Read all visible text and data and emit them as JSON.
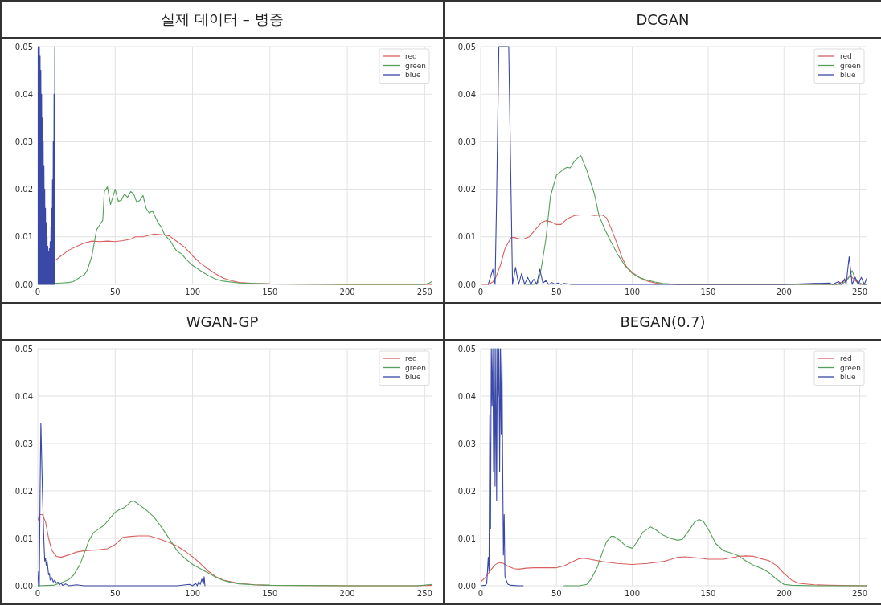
{
  "chart_data": [
    {
      "type": "line",
      "title": "실제 데이터 – 병증",
      "xlim": [
        0,
        255
      ],
      "ylim": [
        0,
        0.05
      ],
      "xticks": [
        0,
        50,
        100,
        150,
        200,
        250
      ],
      "yticks": [
        {
          "value": 0,
          "label": "0.00"
        },
        {
          "value": 0.01,
          "label": "0.01"
        },
        {
          "value": 0.02,
          "label": "0.02"
        },
        {
          "value": 0.03,
          "label": "0.03"
        },
        {
          "value": 0.04,
          "label": "0.04"
        },
        {
          "value": 0.05,
          "label": "0.05"
        }
      ],
      "grid": true,
      "legend": "top right",
      "series": [
        {
          "name": "red",
          "color": "#d9605f",
          "x": [
            11,
            15,
            20,
            25,
            30,
            35,
            40,
            45,
            50,
            55,
            60,
            63,
            68,
            75,
            82,
            85,
            90,
            95,
            100,
            105,
            110,
            115,
            120,
            125,
            130,
            140,
            150,
            200,
            255
          ],
          "values": [
            0.005,
            0.006,
            0.0072,
            0.008,
            0.0087,
            0.0091,
            0.009,
            0.0091,
            0.009,
            0.0092,
            0.0095,
            0.01,
            0.01,
            0.0106,
            0.0104,
            0.0102,
            0.009,
            0.0078,
            0.006,
            0.0045,
            0.0033,
            0.0022,
            0.0013,
            0.0008,
            0.0004,
            0.0002,
            0.0001,
            0,
            0
          ]
        },
        {
          "name": "green",
          "color": "#55a05a",
          "x": [
            11,
            15,
            20,
            23,
            25,
            28,
            30,
            32,
            35,
            38,
            40,
            42,
            43,
            45,
            47,
            50,
            52,
            54,
            56,
            58,
            60,
            62,
            64,
            66,
            68,
            70,
            72,
            74,
            78,
            80,
            82,
            86,
            88,
            90,
            93,
            96,
            100,
            105,
            110,
            115,
            120,
            130,
            150,
            200,
            250,
            253,
            255
          ],
          "values": [
            0.0002,
            0.0003,
            0.0004,
            0.0006,
            0.001,
            0.0017,
            0.002,
            0.003,
            0.006,
            0.0115,
            0.0125,
            0.0135,
            0.0195,
            0.0205,
            0.0168,
            0.02,
            0.0175,
            0.0177,
            0.019,
            0.0183,
            0.0195,
            0.019,
            0.0172,
            0.0177,
            0.0187,
            0.016,
            0.015,
            0.0155,
            0.0128,
            0.012,
            0.0104,
            0.009,
            0.0078,
            0.007,
            0.0064,
            0.0052,
            0.004,
            0.0029,
            0.0019,
            0.0011,
            0.0007,
            0.0003,
            0.0001,
            0,
            0,
            0.0003,
            0.0007
          ]
        },
        {
          "name": "blue",
          "color": "#3a48a8",
          "x": [
            0,
            0.25,
            0.5,
            0.75,
            1,
            1.25,
            1.5,
            1.75,
            2,
            2.25,
            2.5,
            2.75,
            3,
            3.25,
            3.5,
            3.75,
            4,
            4.25,
            4.5,
            4.75,
            5,
            5.25,
            5.5,
            5.75,
            6,
            6.25,
            6.5,
            6.75,
            7,
            7.25,
            7.5,
            7.75,
            8,
            8.25,
            8.5,
            8.75,
            9,
            9.25,
            9.5,
            9.75,
            10,
            10.25,
            10.5,
            10.75,
            11,
            11.1
          ],
          "values": [
            0.05,
            0,
            0.05,
            0,
            0.05,
            0,
            0.048,
            0,
            0.045,
            0,
            0.04,
            0,
            0.035,
            0,
            0.03,
            0,
            0.025,
            0,
            0.02,
            0,
            0.016,
            0,
            0.013,
            0,
            0.01,
            0,
            0.008,
            0,
            0.007,
            0,
            0.0075,
            0,
            0.009,
            0,
            0.012,
            0,
            0.016,
            0,
            0.022,
            0,
            0.03,
            0,
            0.04,
            0,
            0.05,
            0
          ]
        }
      ]
    },
    {
      "type": "line",
      "title": "DCGAN",
      "xlim": [
        0,
        255
      ],
      "ylim": [
        0,
        0.05
      ],
      "xticks": [
        0,
        50,
        100,
        150,
        200,
        250
      ],
      "yticks": [
        {
          "value": 0,
          "label": "0.00"
        },
        {
          "value": 0.01,
          "label": "0.01"
        },
        {
          "value": 0.02,
          "label": "0.02"
        },
        {
          "value": 0.03,
          "label": "0.03"
        },
        {
          "value": 0.04,
          "label": "0.04"
        },
        {
          "value": 0.05,
          "label": "0.05"
        }
      ],
      "grid": true,
      "legend": "top right",
      "series": [
        {
          "name": "red",
          "color": "#d9605f",
          "x": [
            0,
            5,
            8,
            10,
            13,
            16,
            20,
            22,
            25,
            28,
            32,
            36,
            40,
            43,
            46,
            50,
            53,
            57,
            62,
            66,
            72,
            75,
            80,
            83,
            86,
            90,
            93,
            96,
            100,
            105,
            110,
            115,
            120,
            130,
            235,
            240,
            244,
            247,
            250,
            255
          ],
          "values": [
            0,
            0,
            0.0005,
            0.0015,
            0.004,
            0.0075,
            0.0098,
            0.0099,
            0.0096,
            0.0095,
            0.01,
            0.0115,
            0.013,
            0.0134,
            0.0132,
            0.0126,
            0.0126,
            0.0138,
            0.0145,
            0.0146,
            0.0146,
            0.0145,
            0.0146,
            0.014,
            0.0118,
            0.0085,
            0.0058,
            0.0038,
            0.0025,
            0.0014,
            0.0007,
            0.0003,
            0.0001,
            0,
            0,
            0.0008,
            0.0018,
            0.0008,
            0,
            0
          ]
        },
        {
          "name": "green",
          "color": "#55a05a",
          "x": [
            30,
            35,
            38,
            40,
            43,
            46,
            50,
            52,
            55,
            57,
            59,
            62,
            66,
            70,
            75,
            78,
            82,
            85,
            90,
            95,
            100,
            105,
            110,
            115,
            120,
            130,
            238,
            242,
            245,
            247,
            250,
            252,
            255
          ],
          "values": [
            0,
            0,
            0.0005,
            0.0035,
            0.0095,
            0.0185,
            0.023,
            0.0235,
            0.0243,
            0.0246,
            0.0245,
            0.026,
            0.0271,
            0.024,
            0.019,
            0.0145,
            0.0115,
            0.0095,
            0.0065,
            0.004,
            0.0023,
            0.0014,
            0.0009,
            0.0005,
            0.0002,
            0,
            0,
            0.001,
            0.0029,
            0.0012,
            0.0003,
            0,
            0
          ]
        },
        {
          "name": "blue",
          "color": "#3a48a8",
          "x": [
            5,
            8,
            9.5,
            10.5,
            12,
            18.5,
            21,
            23,
            25,
            27,
            29,
            31,
            33,
            35,
            37,
            39,
            41,
            43,
            45,
            47,
            49,
            51,
            53,
            55,
            60,
            100,
            200,
            230,
            232,
            236,
            238,
            240,
            241,
            243,
            245,
            247,
            249,
            251,
            253,
            255
          ],
          "values": [
            0,
            0.0032,
            0,
            0.018,
            0.05,
            0.05,
            0,
            0.0036,
            0,
            0.0023,
            0,
            0.0015,
            0,
            0.0011,
            0,
            0.0032,
            0.0003,
            0.0008,
            0,
            0.0004,
            0,
            0.0003,
            0,
            0.0002,
            0,
            0,
            0,
            0.0003,
            0,
            0.0006,
            0,
            0.0012,
            0,
            0.0058,
            0,
            0.0015,
            0,
            0.0015,
            0,
            0.0016
          ]
        }
      ]
    },
    {
      "type": "line",
      "title": "WGAN-GP",
      "xlim": [
        0,
        255
      ],
      "ylim": [
        0,
        0.05
      ],
      "xticks": [
        0,
        50,
        100,
        150,
        200,
        250
      ],
      "yticks": [
        {
          "value": 0,
          "label": "0.00"
        },
        {
          "value": 0.01,
          "label": "0.01"
        },
        {
          "value": 0.02,
          "label": "0.02"
        },
        {
          "value": 0.03,
          "label": "0.03"
        },
        {
          "value": 0.04,
          "label": "0.04"
        },
        {
          "value": 0.05,
          "label": "0.05"
        }
      ],
      "grid": true,
      "legend": "top right",
      "series": [
        {
          "name": "red",
          "color": "#d9605f",
          "x": [
            0,
            1,
            3,
            5,
            7,
            9,
            12,
            15,
            20,
            25,
            30,
            40,
            45,
            50,
            55,
            60,
            65,
            72,
            78,
            85,
            90,
            95,
            100,
            105,
            110,
            115,
            120,
            130,
            140,
            150,
            200,
            245,
            255
          ],
          "values": [
            0.0138,
            0.015,
            0.015,
            0.0135,
            0.01,
            0.0075,
            0.0062,
            0.006,
            0.0065,
            0.0071,
            0.0074,
            0.0076,
            0.0078,
            0.0087,
            0.0102,
            0.0104,
            0.0105,
            0.0105,
            0.0099,
            0.0091,
            0.0084,
            0.0073,
            0.0061,
            0.0047,
            0.0031,
            0.0019,
            0.0012,
            0.0005,
            0.0002,
            0.0001,
            0,
            0,
            0.0001
          ]
        },
        {
          "name": "green",
          "color": "#55a05a",
          "x": [
            0,
            10,
            15,
            20,
            23,
            27,
            30,
            33,
            36,
            40,
            43,
            46,
            50,
            53,
            56,
            60,
            62,
            65,
            70,
            75,
            80,
            85,
            90,
            95,
            100,
            105,
            110,
            115,
            120,
            125,
            130,
            140,
            150,
            200,
            245,
            255
          ],
          "values": [
            0,
            0.0001,
            0.0006,
            0.0013,
            0.0022,
            0.0043,
            0.0068,
            0.0095,
            0.0112,
            0.0121,
            0.0128,
            0.014,
            0.0155,
            0.0161,
            0.0165,
            0.0177,
            0.0179,
            0.0172,
            0.016,
            0.0145,
            0.0123,
            0.0099,
            0.0074,
            0.0058,
            0.0045,
            0.0036,
            0.0027,
            0.0018,
            0.0011,
            0.0007,
            0.0004,
            0.0002,
            0.0001,
            0,
            0,
            0.0003
          ]
        },
        {
          "name": "blue",
          "color": "#3a48a8",
          "x": [
            0,
            0.5,
            1,
            1.5,
            2,
            3,
            4,
            4.5,
            5,
            5.5,
            6,
            7,
            7.5,
            8,
            9,
            10,
            11,
            12,
            13,
            14,
            15,
            16,
            18,
            20,
            25,
            30,
            50,
            90,
            98,
            100,
            102,
            103,
            104,
            105,
            106,
            107,
            107.5,
            108
          ],
          "values": [
            0,
            0.003,
            0,
            0.02,
            0.0343,
            0.02,
            0.009,
            0.0052,
            0.0058,
            0.0042,
            0.0052,
            0.0023,
            0.0026,
            0.0012,
            0.0017,
            0.0008,
            0.0012,
            0.0005,
            0.0008,
            0.0002,
            0.0006,
            0.0001,
            0.0004,
            0,
            0.0002,
            0,
            0,
            0,
            0.0003,
            0,
            0.0005,
            0,
            0.0009,
            0.0003,
            0.0014,
            0.0004,
            0.0019,
            0
          ]
        }
      ]
    },
    {
      "type": "line",
      "title": "BEGAN(0.7)",
      "xlim": [
        0,
        255
      ],
      "ylim": [
        0,
        0.05
      ],
      "xticks": [
        0,
        50,
        100,
        150,
        200,
        250
      ],
      "yticks": [
        {
          "value": 0,
          "label": "0.00"
        },
        {
          "value": 0.01,
          "label": "0.01"
        },
        {
          "value": 0.02,
          "label": "0.02"
        },
        {
          "value": 0.03,
          "label": "0.03"
        },
        {
          "value": 0.04,
          "label": "0.04"
        },
        {
          "value": 0.05,
          "label": "0.05"
        }
      ],
      "grid": true,
      "legend": "top right",
      "series": [
        {
          "name": "red",
          "color": "#d9605f",
          "x": [
            0,
            3,
            6,
            9,
            12,
            15,
            18,
            22,
            25,
            30,
            35,
            45,
            50,
            55,
            60,
            65,
            68,
            72,
            80,
            90,
            100,
            110,
            120,
            125,
            130,
            135,
            145,
            150,
            160,
            170,
            175,
            180,
            185,
            190,
            195,
            200,
            205,
            210,
            220,
            230,
            255
          ],
          "values": [
            0.0008,
            0.0017,
            0.003,
            0.0043,
            0.0049,
            0.0047,
            0.0041,
            0.0036,
            0.0035,
            0.0037,
            0.0038,
            0.0038,
            0.0038,
            0.0042,
            0.005,
            0.0057,
            0.0058,
            0.0056,
            0.0051,
            0.0047,
            0.0045,
            0.0047,
            0.0051,
            0.0055,
            0.006,
            0.0061,
            0.0058,
            0.0056,
            0.0056,
            0.0062,
            0.0063,
            0.0062,
            0.0057,
            0.0053,
            0.0043,
            0.0026,
            0.0012,
            0.0005,
            0.0002,
            0.0001,
            0
          ]
        },
        {
          "name": "green",
          "color": "#55a05a",
          "x": [
            55,
            65,
            70,
            73,
            77,
            80,
            83,
            86,
            88,
            92,
            96,
            100,
            103,
            107,
            112,
            116,
            120,
            125,
            130,
            133,
            137,
            141,
            144,
            147,
            151,
            155,
            160,
            165,
            170,
            175,
            180,
            185,
            190,
            195,
            200,
            205,
            220,
            255
          ],
          "values": [
            0,
            0,
            0.0003,
            0.0015,
            0.004,
            0.0068,
            0.0093,
            0.0104,
            0.0104,
            0.0095,
            0.0083,
            0.0079,
            0.0092,
            0.0113,
            0.0124,
            0.0117,
            0.0107,
            0.01,
            0.0096,
            0.0098,
            0.0115,
            0.0134,
            0.014,
            0.0135,
            0.0114,
            0.0089,
            0.0074,
            0.0069,
            0.0063,
            0.0052,
            0.0043,
            0.0037,
            0.0028,
            0.0014,
            0.0003,
            0.0001,
            0,
            0
          ]
        },
        {
          "name": "blue",
          "color": "#3a48a8",
          "x": [
            0,
            3,
            4,
            5,
            5.5,
            6,
            6.5,
            7,
            7.5,
            8,
            8.5,
            9,
            9.5,
            10,
            10.5,
            11,
            11.5,
            12,
            12.5,
            13,
            13.5,
            14,
            14.5,
            15,
            15.5,
            16,
            17,
            18,
            20,
            25,
            28
          ],
          "values": [
            0,
            0.0001,
            0.0005,
            0.006,
            0.003,
            0.036,
            0.012,
            0.05,
            0.038,
            0.05,
            0.024,
            0.05,
            0.021,
            0.05,
            0.018,
            0.05,
            0.04,
            0.05,
            0.024,
            0.05,
            0.032,
            0.05,
            0.025,
            0.0065,
            0.015,
            0.002,
            0.001,
            0.0003,
            0.0001,
            0,
            0
          ]
        }
      ]
    }
  ]
}
